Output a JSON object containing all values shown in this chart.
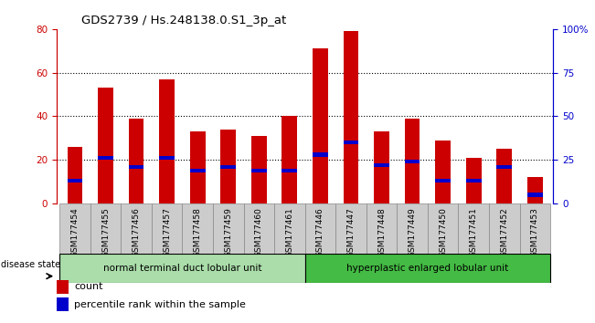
{
  "title": "GDS2739 / Hs.248138.0.S1_3p_at",
  "samples": [
    "GSM177454",
    "GSM177455",
    "GSM177456",
    "GSM177457",
    "GSM177458",
    "GSM177459",
    "GSM177460",
    "GSM177461",
    "GSM177446",
    "GSM177447",
    "GSM177448",
    "GSM177449",
    "GSM177450",
    "GSM177451",
    "GSM177452",
    "GSM177453"
  ],
  "count_values": [
    26,
    53,
    39,
    57,
    33,
    34,
    31,
    40,
    71,
    79,
    33,
    39,
    29,
    21,
    25,
    12
  ],
  "percentile_values": [
    13,
    26,
    21,
    26,
    19,
    21,
    19,
    19,
    28,
    35,
    22,
    24,
    13,
    13,
    21,
    5
  ],
  "group1_label": "normal terminal duct lobular unit",
  "group1_samples": 8,
  "group2_label": "hyperplastic enlarged lobular unit",
  "group2_samples": 8,
  "disease_state_label": "disease state",
  "count_color": "#CC0000",
  "percentile_color": "#0000CC",
  "ylim_left": [
    0,
    80
  ],
  "ylim_right": [
    0,
    100
  ],
  "yticks_left": [
    0,
    20,
    40,
    60,
    80
  ],
  "ytick_labels_left": [
    "0",
    "20",
    "40",
    "60",
    "80"
  ],
  "yticks_right": [
    0,
    25,
    50,
    75,
    100
  ],
  "ytick_labels_right": [
    "0",
    "25",
    "50",
    "75",
    "100%"
  ],
  "grid_yticks": [
    20,
    40,
    60
  ],
  "group1_color": "#aaddaa",
  "group2_color": "#44bb44",
  "left_axis_color": "#CC0000",
  "right_axis_color": "#0000CC",
  "tick_bg_color": "#cccccc",
  "bg_color": "#ffffff"
}
